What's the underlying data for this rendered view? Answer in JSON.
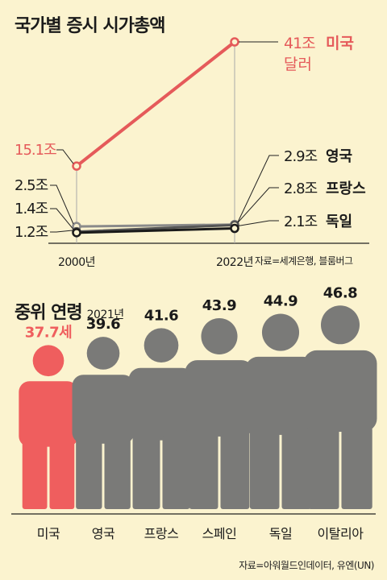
{
  "chart_data": [
    {
      "type": "line",
      "title": "국가별 증시 시가총액",
      "source": "자료=세계은행, 블룸버그",
      "categories": [
        "2000년",
        "2022년"
      ],
      "unit": "조",
      "unit_note": "달러",
      "series": [
        {
          "name": "미국",
          "values": [
            15.1,
            41
          ],
          "labels": [
            "15.1조",
            "41조"
          ],
          "color": "#e55a5a"
        },
        {
          "name": "영국",
          "values": [
            2.5,
            2.9
          ],
          "labels": [
            "2.5조",
            "2.9조"
          ],
          "color": "#8a8a8a"
        },
        {
          "name": "프랑스",
          "values": [
            1.4,
            2.8
          ],
          "labels": [
            "1.4조",
            "2.8조"
          ],
          "color": "#555555"
        },
        {
          "name": "독일",
          "values": [
            1.2,
            2.1
          ],
          "labels": [
            "1.2조",
            "2.1조"
          ],
          "color": "#1a1a1a"
        }
      ]
    },
    {
      "type": "bar",
      "title": "중위 연령",
      "subtitle": "2021년",
      "source": "자료=아워월드인데이터, 유엔(UN)",
      "categories": [
        "미국",
        "영국",
        "프랑스",
        "스페인",
        "독일",
        "이탈리아"
      ],
      "values": [
        37.7,
        39.6,
        41.6,
        43.9,
        44.9,
        46.8
      ],
      "labels": [
        "37.7세",
        "39.6",
        "41.6",
        "43.9",
        "44.9",
        "46.8"
      ],
      "highlight_color": "#ef5e5e",
      "base_color": "#7a7a78"
    }
  ]
}
